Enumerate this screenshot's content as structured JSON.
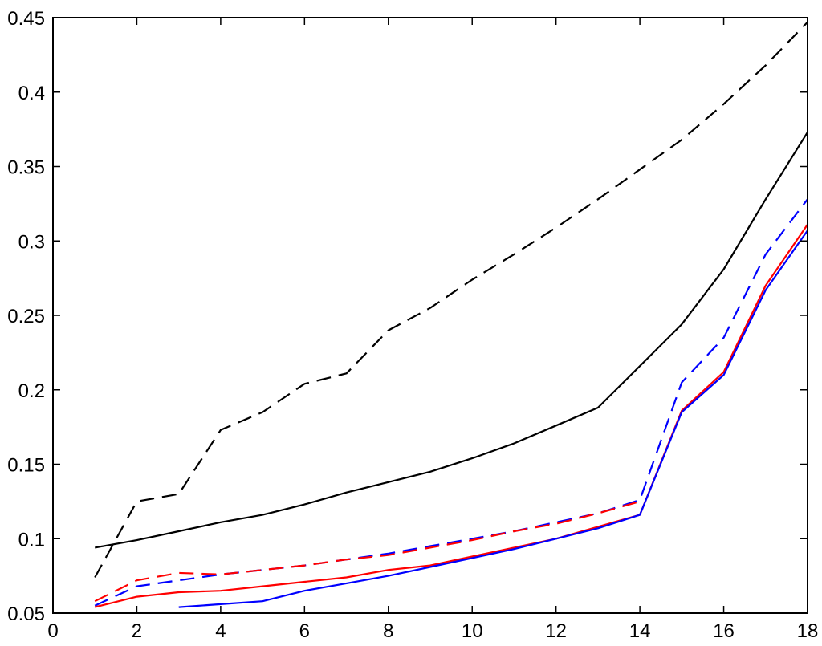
{
  "chart_data": {
    "type": "line",
    "title": "",
    "xlabel": "",
    "ylabel": "",
    "xlim": [
      0,
      18
    ],
    "ylim": [
      0.05,
      0.45
    ],
    "xticks": [
      0,
      2,
      4,
      6,
      8,
      10,
      12,
      14,
      16,
      18
    ],
    "yticks": [
      0.05,
      0.1,
      0.15,
      0.2,
      0.25,
      0.3,
      0.35,
      0.4,
      0.45
    ],
    "xtick_labels": [
      "0",
      "2",
      "4",
      "6",
      "8",
      "10",
      "12",
      "14",
      "16",
      "18"
    ],
    "ytick_labels": [
      "0.05",
      "0.1",
      "0.15",
      "0.2",
      "0.25",
      "0.3",
      "0.35",
      "0.4",
      "0.45"
    ],
    "grid": false,
    "legend": "none",
    "series": [
      {
        "color": "#000000",
        "dashed": true,
        "x": [
          1,
          2,
          3,
          4,
          5,
          6,
          7,
          8,
          9,
          10,
          11,
          12,
          13,
          14,
          15,
          16,
          17,
          18
        ],
        "y": [
          0.074,
          0.125,
          0.13,
          0.173,
          0.185,
          0.204,
          0.211,
          0.24,
          0.255,
          0.274,
          0.291,
          0.309,
          0.328,
          0.348,
          0.368,
          0.392,
          0.418,
          0.447
        ]
      },
      {
        "color": "#000000",
        "dashed": false,
        "x": [
          1,
          2,
          3,
          4,
          5,
          6,
          7,
          8,
          9,
          10,
          11,
          12,
          13,
          14,
          15,
          16,
          17,
          18
        ],
        "y": [
          0.094,
          0.099,
          0.105,
          0.111,
          0.116,
          0.123,
          0.131,
          0.138,
          0.145,
          0.154,
          0.164,
          0.176,
          0.188,
          0.216,
          0.244,
          0.281,
          0.328,
          0.373
        ]
      },
      {
        "color": "#0000ff",
        "dashed": true,
        "x": [
          1,
          2,
          3,
          4,
          5,
          6,
          7,
          8,
          9,
          10,
          11,
          12,
          13,
          14,
          15,
          16,
          17,
          18
        ],
        "y": [
          0.055,
          0.068,
          0.072,
          0.076,
          0.079,
          0.082,
          0.086,
          0.09,
          0.095,
          0.1,
          0.105,
          0.111,
          0.117,
          0.126,
          0.205,
          0.235,
          0.291,
          0.328
        ]
      },
      {
        "color": "#ff0000",
        "dashed": true,
        "x": [
          1,
          2,
          3,
          4,
          5,
          6,
          7,
          8,
          9,
          10,
          11,
          12,
          13,
          14
        ],
        "y": [
          0.058,
          0.072,
          0.077,
          0.076,
          0.079,
          0.082,
          0.086,
          0.089,
          0.094,
          0.099,
          0.105,
          0.11,
          0.117,
          0.125
        ]
      },
      {
        "color": "#ff0000",
        "dashed": false,
        "x": [
          1,
          2,
          3,
          4,
          5,
          6,
          7,
          8,
          9,
          10,
          11,
          12,
          13,
          14,
          15,
          16,
          17,
          18
        ],
        "y": [
          0.054,
          0.061,
          0.064,
          0.065,
          0.068,
          0.071,
          0.074,
          0.079,
          0.082,
          0.088,
          0.094,
          0.1,
          0.108,
          0.116,
          0.186,
          0.212,
          0.27,
          0.311
        ]
      },
      {
        "color": "#0000ff",
        "dashed": false,
        "x": [
          3,
          4,
          5,
          6,
          7,
          8,
          9,
          10,
          11,
          12,
          13,
          14,
          15,
          16,
          17,
          18
        ],
        "y": [
          0.054,
          0.056,
          0.058,
          0.065,
          0.07,
          0.075,
          0.081,
          0.087,
          0.093,
          0.1,
          0.107,
          0.116,
          0.185,
          0.21,
          0.267,
          0.307
        ]
      }
    ]
  }
}
